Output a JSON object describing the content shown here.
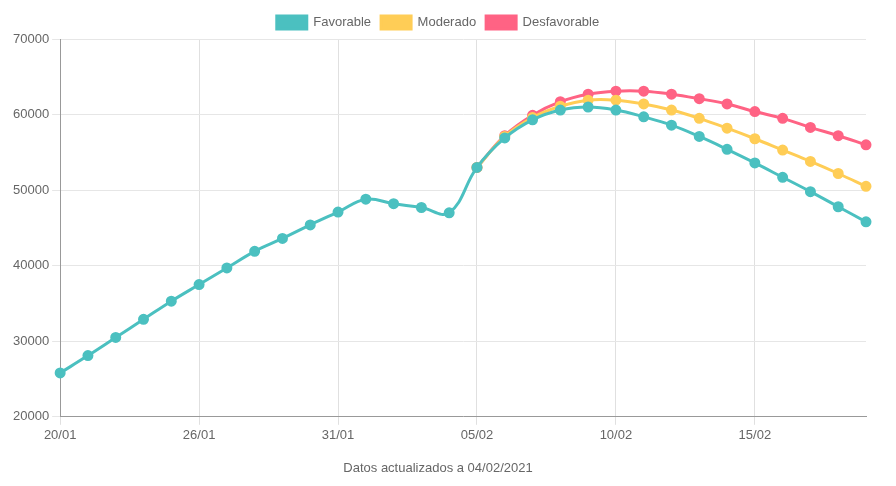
{
  "chart_data": {
    "type": "line",
    "caption": "Datos actualizados a 04/02/2021",
    "categories": [
      "20/01",
      null,
      null,
      null,
      null,
      "26/01",
      null,
      null,
      null,
      null,
      "31/01",
      null,
      null,
      null,
      null,
      "05/02",
      null,
      null,
      null,
      null,
      "10/02",
      null,
      null,
      null,
      null,
      "15/02",
      null,
      null,
      null,
      null
    ],
    "series": [
      {
        "name": "Favorable",
        "color": "#4BC0C0",
        "values": [
          25800,
          28100,
          30500,
          32900,
          35300,
          37500,
          39700,
          41900,
          43600,
          45400,
          47100,
          48800,
          48200,
          47700,
          47000,
          53000,
          56900,
          59300,
          60600,
          61000,
          60600,
          59700,
          58600,
          57100,
          55400,
          53600,
          51700,
          49800,
          47800,
          45800
        ]
      },
      {
        "name": "Moderado",
        "color": "#FFCD56",
        "values": [
          null,
          null,
          null,
          null,
          null,
          null,
          null,
          null,
          null,
          null,
          null,
          null,
          null,
          null,
          null,
          53000,
          57100,
          59600,
          61100,
          61900,
          61900,
          61400,
          60600,
          59500,
          58200,
          56800,
          55300,
          53800,
          52200,
          50500
        ]
      },
      {
        "name": "Desfavorable",
        "color": "#FF6384",
        "values": [
          null,
          null,
          null,
          null,
          null,
          null,
          null,
          null,
          null,
          null,
          null,
          null,
          null,
          null,
          null,
          53000,
          57200,
          59900,
          61700,
          62700,
          63100,
          63100,
          62700,
          62100,
          61400,
          60400,
          59500,
          58300,
          57200,
          56000
        ]
      }
    ],
    "ylim": [
      20000,
      70000
    ],
    "yticks": [
      20000,
      30000,
      40000,
      50000,
      60000,
      70000
    ],
    "grid": true,
    "legend": "top",
    "marker": "circle"
  }
}
